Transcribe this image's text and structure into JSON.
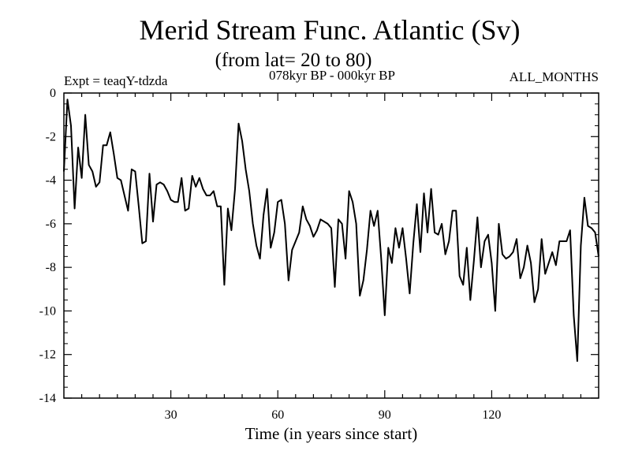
{
  "chart_data": {
    "type": "line",
    "title": "Merid Stream Func. Atlantic (Sv)",
    "subtitle": "(from lat= 20 to 80)",
    "experiment_label": "Expt = teaqY-tdzda",
    "period_label": "078kyr BP - 000kyr BP",
    "months_label": "ALL_MONTHS",
    "xlabel": "Time (in years since start)",
    "ylabel": "",
    "xlim": [
      0,
      150
    ],
    "ylim": [
      -14,
      0
    ],
    "xticks": [
      30,
      60,
      90,
      120
    ],
    "yticks": [
      0,
      -2,
      -4,
      -6,
      -8,
      -10,
      -12,
      -14
    ],
    "grid": false,
    "series": [
      {
        "name": "Merid Stream Func. Atlantic",
        "x": [
          0,
          1,
          2,
          3,
          4,
          5,
          6,
          7,
          8,
          9,
          10,
          11,
          12,
          13,
          14,
          15,
          16,
          17,
          18,
          19,
          20,
          21,
          22,
          23,
          24,
          25,
          26,
          27,
          28,
          29,
          30,
          31,
          32,
          33,
          34,
          35,
          36,
          37,
          38,
          39,
          40,
          41,
          42,
          43,
          44,
          45,
          46,
          47,
          48,
          49,
          50,
          51,
          52,
          53,
          54,
          55,
          56,
          57,
          58,
          59,
          60,
          61,
          62,
          63,
          64,
          65,
          66,
          67,
          68,
          69,
          70,
          71,
          72,
          73,
          74,
          75,
          76,
          77,
          78,
          79,
          80,
          81,
          82,
          83,
          84,
          85,
          86,
          87,
          88,
          89,
          90,
          91,
          92,
          93,
          94,
          95,
          96,
          97,
          98,
          99,
          100,
          101,
          102,
          103,
          104,
          105,
          106,
          107,
          108,
          109,
          110,
          111,
          112,
          113,
          114,
          115,
          116,
          117,
          118,
          119,
          120,
          121,
          122,
          123,
          124,
          125,
          126,
          127,
          128,
          129,
          130,
          131,
          132,
          133,
          134,
          135,
          136,
          137,
          138,
          139,
          140,
          141,
          142,
          143,
          144,
          145,
          146,
          147,
          148,
          149,
          150
        ],
        "values": [
          -3.6,
          -0.3,
          -1.5,
          -5.3,
          -2.5,
          -3.9,
          -1.0,
          -3.3,
          -3.6,
          -4.3,
          -4.1,
          -2.4,
          -2.4,
          -1.8,
          -2.8,
          -3.9,
          -4.0,
          -4.7,
          -5.4,
          -3.5,
          -3.6,
          -5.2,
          -6.9,
          -6.8,
          -3.7,
          -5.9,
          -4.2,
          -4.1,
          -4.2,
          -4.5,
          -4.9,
          -5.0,
          -5.0,
          -3.9,
          -5.4,
          -5.3,
          -3.8,
          -4.3,
          -3.9,
          -4.4,
          -4.7,
          -4.7,
          -4.5,
          -5.2,
          -5.2,
          -8.8,
          -5.3,
          -6.3,
          -4.4,
          -1.4,
          -2.2,
          -3.5,
          -4.5,
          -6.0,
          -7.0,
          -7.6,
          -5.6,
          -4.4,
          -7.1,
          -6.4,
          -5.0,
          -4.9,
          -6.0,
          -8.6,
          -7.2,
          -6.8,
          -6.4,
          -5.2,
          -5.8,
          -6.1,
          -6.6,
          -6.3,
          -5.8,
          -5.9,
          -6.0,
          -6.2,
          -8.9,
          -5.8,
          -6.0,
          -7.6,
          -4.5,
          -5.0,
          -6.0,
          -9.3,
          -8.6,
          -7.2,
          -5.4,
          -6.1,
          -5.4,
          -7.6,
          -10.2,
          -7.1,
          -7.8,
          -6.2,
          -7.1,
          -6.2,
          -7.6,
          -9.2,
          -6.9,
          -5.1,
          -7.3,
          -4.6,
          -6.4,
          -4.4,
          -6.4,
          -6.5,
          -6.0,
          -7.4,
          -6.8,
          -5.4,
          -5.4,
          -8.4,
          -8.8,
          -7.1,
          -9.5,
          -7.7,
          -5.7,
          -8.0,
          -6.8,
          -6.5,
          -7.8,
          -10.0,
          -6.0,
          -7.4,
          -7.6,
          -7.5,
          -7.3,
          -6.7,
          -8.5,
          -8.0,
          -7.0,
          -7.8,
          -9.6,
          -9.0,
          -6.7,
          -8.3,
          -7.8,
          -7.3,
          -7.9,
          -6.8,
          -6.8,
          -6.8,
          -6.3,
          -10.2,
          -12.3,
          -7.0,
          -4.8,
          -6.1,
          -6.2,
          -6.4,
          -7.5
        ]
      }
    ]
  }
}
